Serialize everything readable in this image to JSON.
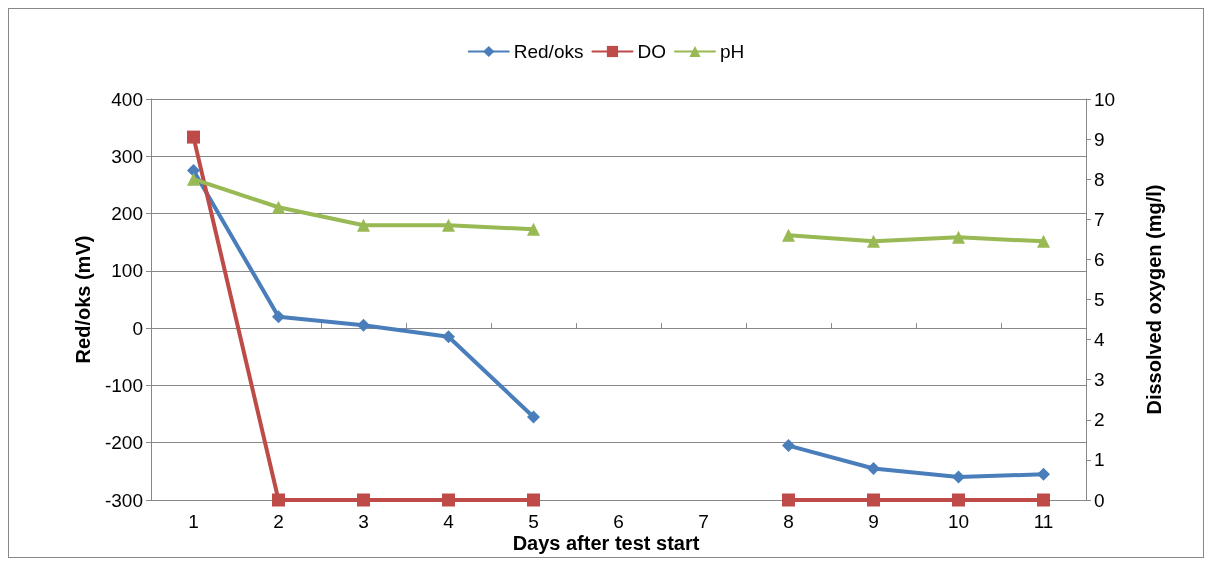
{
  "chart_data": {
    "type": "line",
    "xlabel": "Days after test start",
    "ylabel": "Red/oks (mV)",
    "y2label": "Dissolved oxygen (mg/l)",
    "categories": [
      "1",
      "2",
      "3",
      "4",
      "5",
      "6",
      "7",
      "8",
      "9",
      "10",
      "11"
    ],
    "series": [
      {
        "name": "Red/oks",
        "color": "#4a7ebb",
        "marker": "diamond",
        "values": [
          275,
          20,
          5,
          -15,
          -155,
          null,
          null,
          -205,
          -245,
          -260,
          -255
        ]
      },
      {
        "name": "DO",
        "color": "#be4b48",
        "marker": "square",
        "axis": "y2",
        "values": [
          9.05,
          0,
          0,
          0,
          0,
          null,
          null,
          0,
          0,
          0,
          0
        ]
      },
      {
        "name": "pH",
        "color": "#98b954",
        "marker": "triangle",
        "axis": "y2",
        "values": [
          8.0,
          7.3,
          6.85,
          6.85,
          6.75,
          null,
          null,
          6.6,
          6.45,
          6.55,
          6.45
        ]
      }
    ],
    "ylim": [
      -300,
      400
    ],
    "yticks": [
      -300,
      -200,
      -100,
      0,
      100,
      200,
      300,
      400
    ],
    "y2lim": [
      0,
      10
    ],
    "y2ticks": [
      0,
      1,
      2,
      3,
      4,
      5,
      6,
      7,
      8,
      9,
      10
    ],
    "grid": "y",
    "legend": "top",
    "line_style": "solid"
  }
}
